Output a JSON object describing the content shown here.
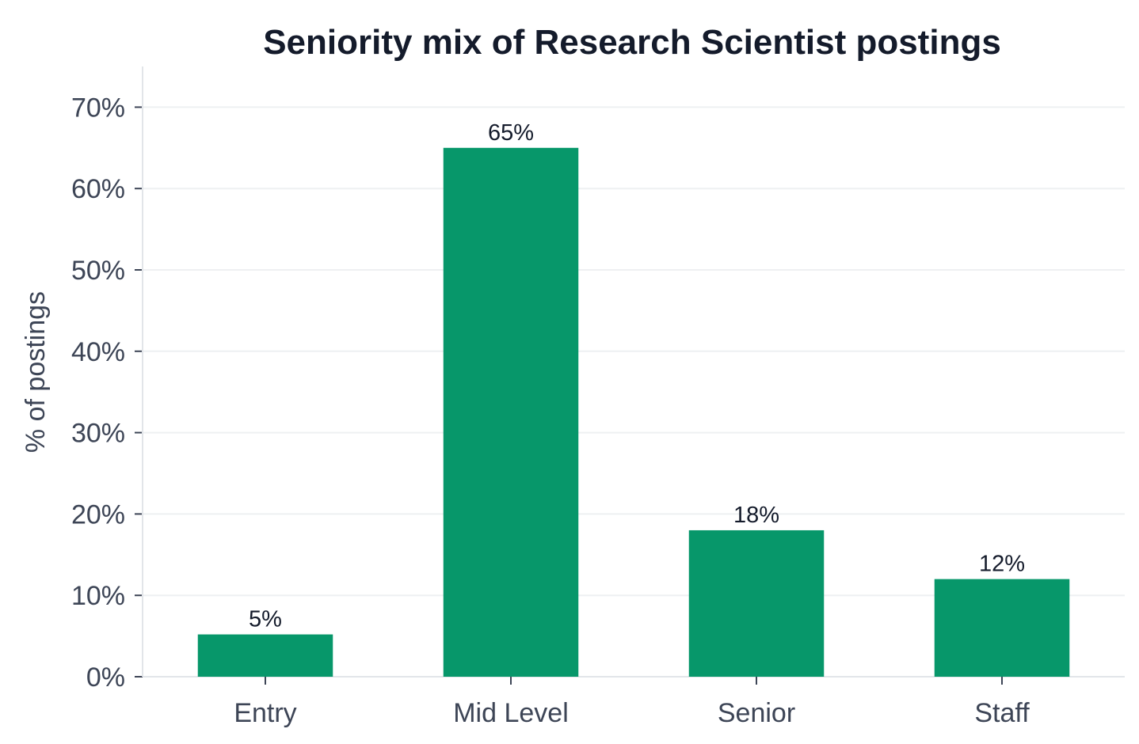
{
  "chart_data": {
    "type": "bar",
    "title": "Seniority mix of Research Scientist postings",
    "xlabel": "",
    "ylabel": "% of postings",
    "categories": [
      "Entry",
      "Mid Level",
      "Senior",
      "Staff"
    ],
    "values": [
      5.2,
      65,
      18,
      12
    ],
    "data_labels": [
      "5%",
      "65%",
      "18%",
      "12%"
    ],
    "ylim": [
      0,
      75
    ],
    "yticks": [
      0,
      10,
      20,
      30,
      40,
      50,
      60,
      70
    ],
    "ytick_labels": [
      "0%",
      "10%",
      "20%",
      "30%",
      "40%",
      "50%",
      "60%",
      "70%"
    ],
    "grid": true,
    "bar_color": "#07976a"
  }
}
